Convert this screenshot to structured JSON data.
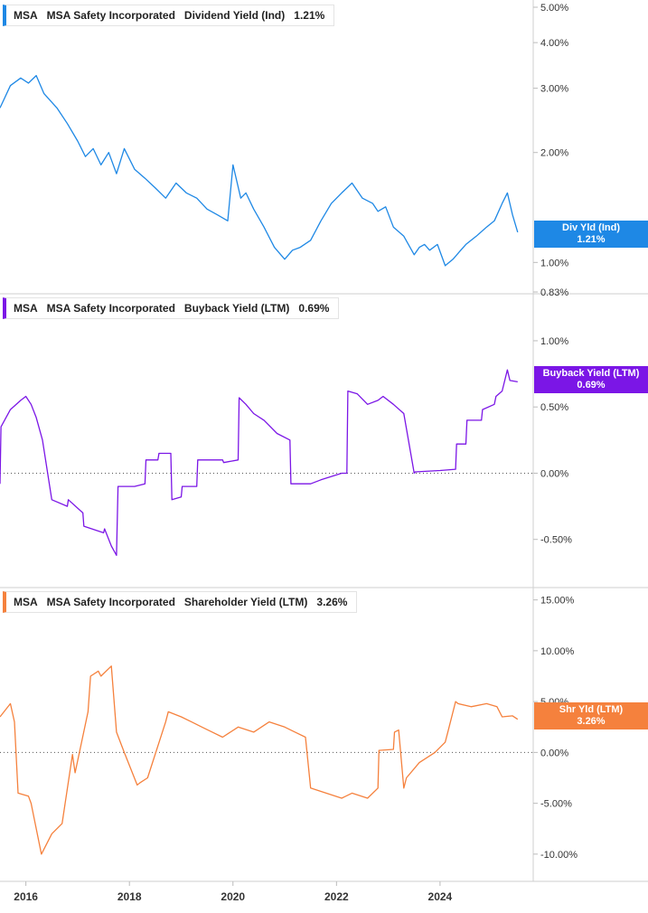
{
  "colors": {
    "dividend": "#1e88e5",
    "buyback": "#7b16e6",
    "shareholder": "#f5813d",
    "grid": "#d9d9d9",
    "text": "#333333"
  },
  "x_axis": {
    "labels": [
      "2016",
      "2018",
      "2020",
      "2022",
      "2024"
    ],
    "tick_values": [
      2016.0,
      2018.0,
      2020.0,
      2022.0,
      2024.0
    ],
    "range": [
      2015.5,
      2025.8
    ]
  },
  "panels": [
    {
      "id": "dividend",
      "legend": {
        "ticker": "MSA",
        "company": "MSA Safety Incorporated",
        "metric": "Dividend Yield (Ind)",
        "value": "1.21%"
      },
      "tag": {
        "line1": "Div Yld (Ind)",
        "line2": "1.21%"
      }
    },
    {
      "id": "buyback",
      "legend": {
        "ticker": "MSA",
        "company": "MSA Safety Incorporated",
        "metric": "Buyback Yield (LTM)",
        "value": "0.69%"
      },
      "tag": {
        "line1": "Buyback Yield (LTM)",
        "line2": "0.69%"
      }
    },
    {
      "id": "shareholder",
      "legend": {
        "ticker": "MSA",
        "company": "MSA Safety Incorporated",
        "metric": "Shareholder Yield (LTM)",
        "value": "3.26%"
      },
      "tag": {
        "line1": "Shr Yld (LTM)",
        "line2": "3.26%"
      }
    }
  ],
  "chart_data": [
    {
      "type": "line",
      "title": "MSA Safety Incorporated Dividend Yield (Ind)",
      "scale": "log",
      "ylim": [
        0.83,
        5.0
      ],
      "y_ticks": [
        {
          "value": 5.0,
          "label": "5.00%"
        },
        {
          "value": 4.0,
          "label": "4.00%"
        },
        {
          "value": 3.0,
          "label": "3.00%"
        },
        {
          "value": 2.0,
          "label": "2.00%"
        },
        {
          "value": 1.0,
          "label": "1.00%"
        },
        {
          "value": 0.83,
          "label": "0.83%"
        }
      ],
      "x": [
        2015.5,
        2015.7,
        2015.9,
        2016.05,
        2016.2,
        2016.35,
        2016.6,
        2016.8,
        2017.0,
        2017.15,
        2017.3,
        2017.45,
        2017.6,
        2017.75,
        2017.9,
        2018.1,
        2018.3,
        2018.5,
        2018.7,
        2018.9,
        2019.1,
        2019.3,
        2019.5,
        2019.7,
        2019.9,
        2020.0,
        2020.15,
        2020.25,
        2020.4,
        2020.6,
        2020.8,
        2021.0,
        2021.15,
        2021.3,
        2021.5,
        2021.7,
        2021.9,
        2022.1,
        2022.3,
        2022.5,
        2022.7,
        2022.8,
        2022.95,
        2023.1,
        2023.3,
        2023.5,
        2023.6,
        2023.7,
        2023.8,
        2023.95,
        2024.1,
        2024.25,
        2024.4,
        2024.5,
        2024.7,
        2024.9,
        2025.05,
        2025.2,
        2025.3,
        2025.4,
        2025.5
      ],
      "values": [
        2.65,
        3.05,
        3.2,
        3.1,
        3.25,
        2.9,
        2.65,
        2.4,
        2.15,
        1.95,
        2.05,
        1.85,
        2.0,
        1.75,
        2.05,
        1.8,
        1.7,
        1.6,
        1.5,
        1.65,
        1.55,
        1.5,
        1.4,
        1.35,
        1.3,
        1.85,
        1.5,
        1.55,
        1.4,
        1.25,
        1.1,
        1.02,
        1.08,
        1.1,
        1.15,
        1.3,
        1.45,
        1.55,
        1.65,
        1.5,
        1.45,
        1.38,
        1.42,
        1.25,
        1.18,
        1.05,
        1.1,
        1.12,
        1.08,
        1.12,
        0.98,
        1.02,
        1.08,
        1.12,
        1.18,
        1.25,
        1.3,
        1.45,
        1.55,
        1.35,
        1.21
      ],
      "last_value": "1.21%"
    },
    {
      "type": "line",
      "title": "MSA Safety Incorporated Buyback Yield (LTM)",
      "scale": "linear",
      "ylim": [
        -0.85,
        1.3
      ],
      "zero_line": true,
      "y_ticks": [
        {
          "value": 1.0,
          "label": "1.00%"
        },
        {
          "value": 0.5,
          "label": "0.50%"
        },
        {
          "value": 0.0,
          "label": "0.00%"
        },
        {
          "value": -0.5,
          "label": "-0.50%"
        }
      ],
      "x": [
        2015.5,
        2015.52,
        2015.7,
        2015.9,
        2016.0,
        2016.1,
        2016.2,
        2016.3,
        2016.32,
        2016.5,
        2016.8,
        2016.82,
        2017.1,
        2017.12,
        2017.5,
        2017.52,
        2017.65,
        2017.75,
        2017.78,
        2018.0,
        2018.1,
        2018.3,
        2018.32,
        2018.55,
        2018.57,
        2018.8,
        2018.82,
        2019.0,
        2019.02,
        2019.3,
        2019.32,
        2019.8,
        2019.82,
        2020.1,
        2020.12,
        2020.25,
        2020.4,
        2020.6,
        2020.85,
        2021.1,
        2021.12,
        2021.5,
        2021.7,
        2022.1,
        2022.2,
        2022.22,
        2022.4,
        2022.6,
        2022.8,
        2022.9,
        2023.1,
        2023.3,
        2023.5,
        2023.52,
        2024.0,
        2024.3,
        2024.32,
        2024.5,
        2024.52,
        2024.8,
        2024.82,
        2025.05,
        2025.08,
        2025.2,
        2025.3,
        2025.35,
        2025.5
      ],
      "values": [
        -0.08,
        0.35,
        0.48,
        0.55,
        0.58,
        0.52,
        0.42,
        0.28,
        0.25,
        -0.2,
        -0.25,
        -0.2,
        -0.3,
        -0.4,
        -0.45,
        -0.42,
        -0.55,
        -0.62,
        -0.1,
        -0.1,
        -0.1,
        -0.08,
        0.1,
        0.1,
        0.15,
        0.15,
        -0.2,
        -0.18,
        -0.1,
        -0.1,
        0.1,
        0.1,
        0.08,
        0.1,
        0.57,
        0.52,
        0.45,
        0.4,
        0.3,
        0.25,
        -0.08,
        -0.08,
        -0.05,
        0.0,
        0.0,
        0.62,
        0.6,
        0.52,
        0.55,
        0.58,
        0.52,
        0.45,
        0.0,
        0.01,
        0.02,
        0.03,
        0.22,
        0.22,
        0.4,
        0.4,
        0.48,
        0.52,
        0.58,
        0.62,
        0.78,
        0.7,
        0.69
      ],
      "last_value": "0.69%"
    },
    {
      "type": "line",
      "title": "MSA Safety Incorporated Shareholder Yield (LTM)",
      "scale": "linear",
      "ylim": [
        -12.5,
        15.5
      ],
      "zero_line": true,
      "y_ticks": [
        {
          "value": 15.0,
          "label": "15.00%"
        },
        {
          "value": 10.0,
          "label": "10.00%"
        },
        {
          "value": 5.0,
          "label": "5.00%"
        },
        {
          "value": 0.0,
          "label": "0.00%"
        },
        {
          "value": -5.0,
          "label": "-5.00%"
        },
        {
          "value": -10.0,
          "label": "-10.00%"
        }
      ],
      "x": [
        2015.5,
        2015.7,
        2015.78,
        2015.85,
        2016.05,
        2016.1,
        2016.3,
        2016.5,
        2016.7,
        2016.9,
        2016.95,
        2017.2,
        2017.25,
        2017.4,
        2017.45,
        2017.65,
        2017.75,
        2017.9,
        2018.15,
        2018.2,
        2018.35,
        2018.7,
        2018.75,
        2019.0,
        2019.2,
        2019.4,
        2019.6,
        2019.8,
        2020.1,
        2020.4,
        2020.7,
        2021.0,
        2021.2,
        2021.4,
        2021.5,
        2021.8,
        2022.1,
        2022.3,
        2022.6,
        2022.8,
        2022.82,
        2023.1,
        2023.12,
        2023.2,
        2023.3,
        2023.35,
        2023.6,
        2023.9,
        2024.1,
        2024.15,
        2024.3,
        2024.35,
        2024.6,
        2024.9,
        2025.1,
        2025.2,
        2025.4,
        2025.5
      ],
      "values": [
        3.5,
        4.8,
        3.0,
        -4.0,
        -4.3,
        -5.0,
        -10.0,
        -8.0,
        -7.0,
        -0.2,
        -2.0,
        4.0,
        7.5,
        8.0,
        7.5,
        8.5,
        2.0,
        0.0,
        -3.2,
        -3.0,
        -2.5,
        3.0,
        4.0,
        3.5,
        3.0,
        2.5,
        2.0,
        1.5,
        2.5,
        2.0,
        3.0,
        2.5,
        2.0,
        1.5,
        -3.5,
        -4.0,
        -4.5,
        -4.0,
        -4.5,
        -3.5,
        0.2,
        0.3,
        2.0,
        2.2,
        -3.5,
        -2.5,
        -1.0,
        0.0,
        1.0,
        2.0,
        5.0,
        4.8,
        4.5,
        4.8,
        4.5,
        3.5,
        3.6,
        3.26
      ],
      "last_value": "3.26%"
    }
  ]
}
